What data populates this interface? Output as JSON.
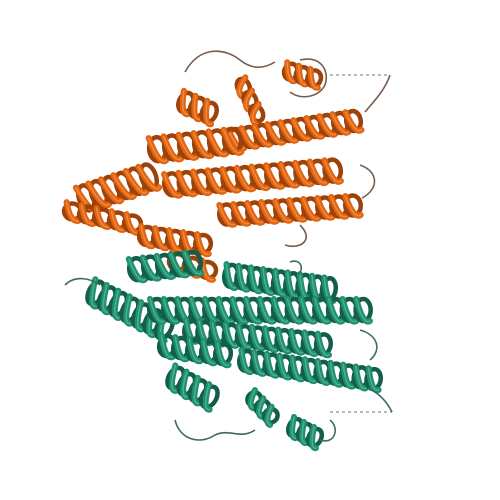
{
  "colors": {
    "background": "#ffffff",
    "chain_a": "#e2640f",
    "chain_a_dark": "#9c420a",
    "chain_a_light": "#f59a58",
    "chain_b": "#1f8f70",
    "chain_b_dark": "#125e48",
    "chain_b_light": "#5cc0a0",
    "loop": "#7a5c4a",
    "loop_b": "#3f6b60",
    "dashed_gap": "#a0a0a0"
  },
  "chains": [
    {
      "id": "A",
      "color_key": "chain_a"
    },
    {
      "id": "B",
      "color_key": "chain_b"
    }
  ]
}
